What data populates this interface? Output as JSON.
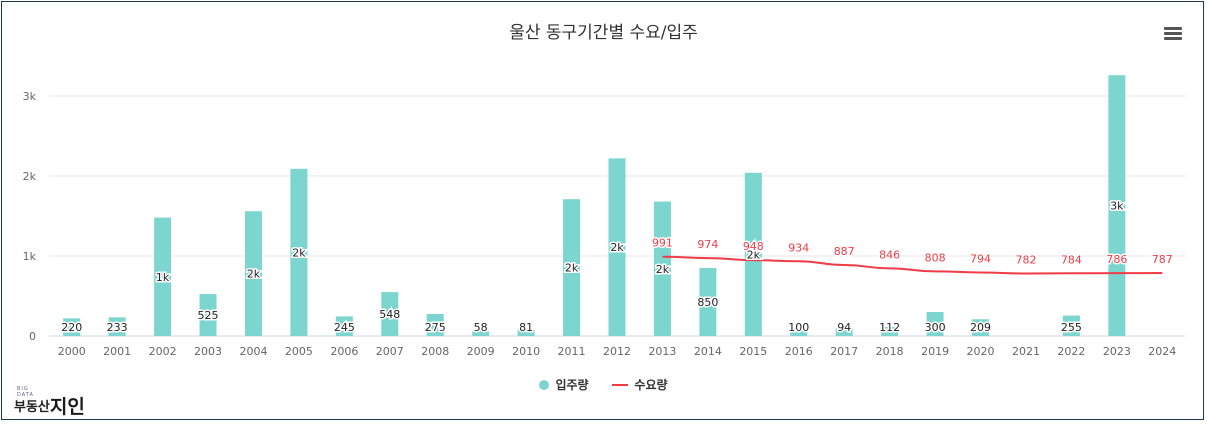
{
  "title": "울산 동구기간별 수요/입주",
  "colors": {
    "bar": "#7dd5cf",
    "line": "#f03c46",
    "grid": "#e6e6e6",
    "axis_text": "#666666"
  },
  "legend": {
    "supply_label": "입주량",
    "demand_label": "수요량",
    "placement": "bottom-center"
  },
  "logo": {
    "small": "BIG DATA",
    "text_a": "부동산",
    "text_b": "지인"
  },
  "chart_data": {
    "type": "bar",
    "title": "울산 동구기간별 수요/입주",
    "categories": [
      "2000",
      "2001",
      "2002",
      "2003",
      "2004",
      "2005",
      "2006",
      "2007",
      "2008",
      "2009",
      "2010",
      "2011",
      "2012",
      "2013",
      "2014",
      "2015",
      "2016",
      "2017",
      "2018",
      "2019",
      "2020",
      "2021",
      "2022",
      "2023",
      "2024"
    ],
    "ylim": [
      0,
      3300
    ],
    "yticks": [
      0,
      1000,
      2000,
      3000
    ],
    "ytick_labels": [
      "0",
      "1k",
      "2k",
      "3k"
    ],
    "grid": true,
    "series": [
      {
        "name": "입주량",
        "type": "bar",
        "values": [
          220,
          233,
          1480,
          525,
          1560,
          2090,
          245,
          548,
          275,
          58,
          81,
          1710,
          2220,
          1680,
          850,
          2040,
          100,
          94,
          112,
          300,
          209,
          0,
          255,
          3260,
          0
        ],
        "labels": [
          "220",
          "233",
          "1k",
          "525",
          "2k",
          "2k",
          "245",
          "548",
          "275",
          "58",
          "81",
          "2k",
          "2k",
          "2k",
          "850",
          "2k",
          "100",
          "94",
          "112",
          "300",
          "209",
          "",
          "255",
          "3k",
          ""
        ]
      },
      {
        "name": "수요량",
        "type": "line",
        "values": [
          null,
          null,
          null,
          null,
          null,
          null,
          null,
          null,
          null,
          null,
          null,
          null,
          null,
          991,
          974,
          948,
          934,
          887,
          846,
          808,
          794,
          782,
          784,
          786,
          787
        ],
        "labels": [
          "",
          "",
          "",
          "",
          "",
          "",
          "",
          "",
          "",
          "",
          "",
          "",
          "",
          "991",
          "974",
          "948",
          "934",
          "887",
          "846",
          "808",
          "794",
          "782",
          "784",
          "786",
          "787"
        ]
      }
    ]
  }
}
